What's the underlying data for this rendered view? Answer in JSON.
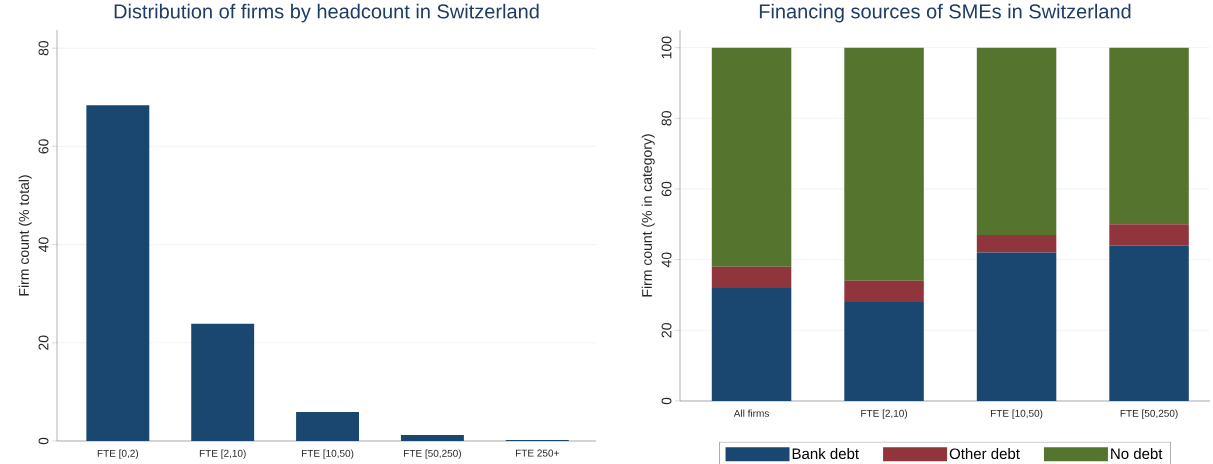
{
  "chart_data": [
    {
      "type": "bar",
      "title": "Distribution of firms by headcount in Switzerland",
      "ylabel": "Firm count (% total)",
      "categories": [
        "FTE [0,2)",
        "FTE [2,10)",
        "FTE [10,50)",
        "FTE [50,250)",
        "FTE 250+"
      ],
      "values": [
        68.4,
        23.9,
        5.9,
        1.2,
        0.2
      ],
      "color": "#1a476f",
      "ylim": [
        0,
        83.7
      ],
      "yticks": [
        0,
        20,
        40,
        60,
        80
      ],
      "grid": "y"
    },
    {
      "type": "bar",
      "title": "Financing sources of SMEs in Switzerland",
      "ylabel": "Firm count (% in category)",
      "categories": [
        "All firms",
        "FTE [2,10)",
        "FTE [10,50)",
        "FTE [50,250)"
      ],
      "stacked": true,
      "series": [
        {
          "name": "Bank debt",
          "color": "#1a476f",
          "values": [
            32,
            28,
            42,
            44
          ]
        },
        {
          "name": "Other debt",
          "color": "#90353b",
          "values": [
            6,
            6,
            5,
            6
          ]
        },
        {
          "name": "No debt",
          "color": "#55752f",
          "values": [
            62,
            66,
            53,
            50
          ]
        }
      ],
      "ylim": [
        0,
        105
      ],
      "yticks": [
        0,
        20,
        40,
        60,
        80,
        100
      ],
      "grid": "y",
      "legend": "bottom"
    }
  ]
}
